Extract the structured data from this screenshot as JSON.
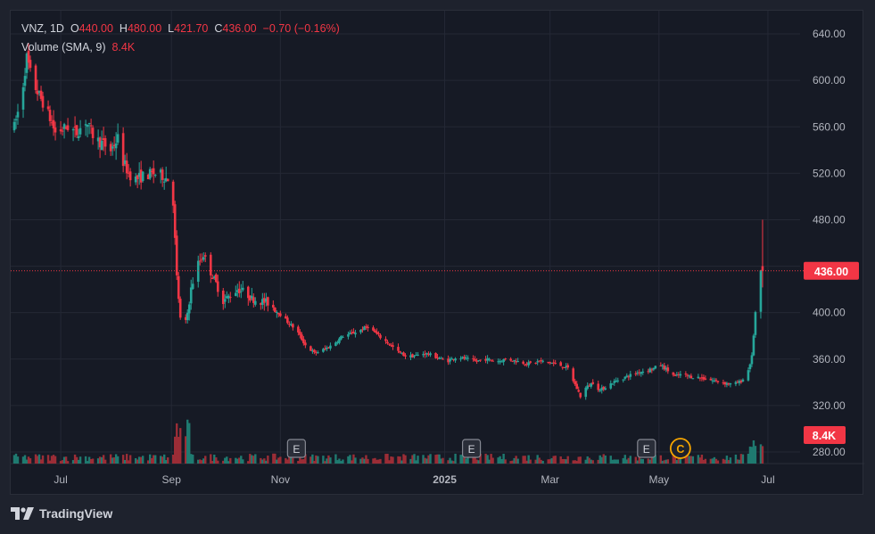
{
  "legend": {
    "symbol": "VNZ",
    "interval": "1D",
    "o_label": "O",
    "o_value": "440.00",
    "h_label": "H",
    "h_value": "480.00",
    "l_label": "L",
    "l_value": "421.70",
    "c_label": "C",
    "c_value": "436.00",
    "change": "−0.70 (−0.16%)",
    "volume_label": "Volume (SMA, 9)",
    "volume_value": "8.4K"
  },
  "footer": {
    "brand": "TradingView"
  },
  "colors": {
    "up": "#26a69a",
    "down": "#f23645",
    "up_volume": "#1f7a70",
    "down_volume": "#9b2d36",
    "grid": "#242835",
    "axis_text": "#b2b5be",
    "price_line": "#f23645"
  },
  "chart_data": {
    "type": "candlestick",
    "symbol": "VNZ",
    "interval": "1D",
    "y_ticks": [
      "640.00",
      "600.00",
      "560.00",
      "520.00",
      "480.00",
      "440.00",
      "400.00",
      "360.00",
      "320.00",
      "280.00"
    ],
    "y_tick_values": [
      640,
      600,
      560,
      520,
      480,
      440,
      400,
      360,
      320,
      280
    ],
    "ylim": [
      270,
      660
    ],
    "x_ticks": [
      "Jul",
      "Sep",
      "Nov",
      "2025",
      "Mar",
      "May",
      "Jul"
    ],
    "x_tick_days": [
      28,
      90,
      151,
      243,
      302,
      363,
      424
    ],
    "x_range_days": [
      0,
      442
    ],
    "last_price": "436.00",
    "last_price_value": 436,
    "last_volume_label": "8.4K",
    "event_markers": [
      {
        "label": "E",
        "kind": "earnings",
        "day": 160
      },
      {
        "label": "E",
        "kind": "earnings",
        "day": 258
      },
      {
        "label": "E",
        "kind": "earnings",
        "day": 356
      },
      {
        "label": "C",
        "kind": "corporate",
        "day": 375
      }
    ],
    "price_anchors_day_close": [
      [
        2,
        560
      ],
      [
        6,
        585
      ],
      [
        9,
        620
      ],
      [
        12,
        600
      ],
      [
        15,
        590
      ],
      [
        20,
        575
      ],
      [
        25,
        555
      ],
      [
        32,
        560
      ],
      [
        37,
        555
      ],
      [
        42,
        565
      ],
      [
        47,
        550
      ],
      [
        52,
        545
      ],
      [
        56,
        540
      ],
      [
        60,
        550
      ],
      [
        63,
        530
      ],
      [
        66,
        520
      ],
      [
        70,
        515
      ],
      [
        75,
        518
      ],
      [
        80,
        520
      ],
      [
        85,
        518
      ],
      [
        88,
        515
      ],
      [
        91,
        495
      ],
      [
        93,
        430
      ],
      [
        95,
        395
      ],
      [
        97,
        385
      ],
      [
        99,
        400
      ],
      [
        101,
        420
      ],
      [
        104,
        440
      ],
      [
        108,
        450
      ],
      [
        111,
        438
      ],
      [
        115,
        425
      ],
      [
        119,
        410
      ],
      [
        123,
        415
      ],
      [
        127,
        420
      ],
      [
        131,
        418
      ],
      [
        135,
        412
      ],
      [
        140,
        410
      ],
      [
        145,
        408
      ],
      [
        150,
        400
      ],
      [
        155,
        392
      ],
      [
        160,
        385
      ],
      [
        165,
        372
      ],
      [
        170,
        365
      ],
      [
        175,
        368
      ],
      [
        180,
        372
      ],
      [
        186,
        380
      ],
      [
        191,
        382
      ],
      [
        196,
        385
      ],
      [
        200,
        388
      ],
      [
        206,
        380
      ],
      [
        212,
        373
      ],
      [
        217,
        366
      ],
      [
        222,
        362
      ],
      [
        227,
        363
      ],
      [
        232,
        365
      ],
      [
        238,
        362
      ],
      [
        244,
        358
      ],
      [
        250,
        362
      ],
      [
        255,
        360
      ],
      [
        260,
        358
      ],
      [
        266,
        360
      ],
      [
        272,
        358
      ],
      [
        278,
        360
      ],
      [
        284,
        358
      ],
      [
        290,
        356
      ],
      [
        296,
        358
      ],
      [
        302,
        357
      ],
      [
        307,
        355
      ],
      [
        312,
        352
      ],
      [
        316,
        338
      ],
      [
        319,
        328
      ],
      [
        322,
        335
      ],
      [
        326,
        340
      ],
      [
        330,
        333
      ],
      [
        335,
        338
      ],
      [
        340,
        342
      ],
      [
        345,
        345
      ],
      [
        350,
        348
      ],
      [
        355,
        350
      ],
      [
        360,
        352
      ],
      [
        364,
        355
      ],
      [
        368,
        350
      ],
      [
        372,
        345
      ],
      [
        376,
        347
      ],
      [
        380,
        345
      ],
      [
        386,
        344
      ],
      [
        392,
        342
      ],
      [
        398,
        340
      ],
      [
        404,
        338
      ],
      [
        408,
        340
      ],
      [
        412,
        345
      ],
      [
        415,
        362
      ],
      [
        417,
        400
      ],
      [
        419,
        430
      ],
      [
        421,
        436
      ]
    ],
    "volume_ylim": [
      0,
      20
    ]
  }
}
